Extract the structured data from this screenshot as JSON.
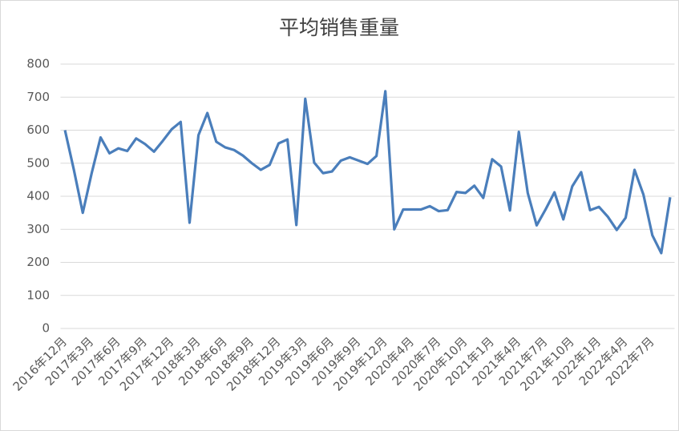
{
  "chart_data": {
    "type": "line",
    "title": "平均销售重量",
    "categories": [
      "2016年12月",
      null,
      null,
      "2017年3月",
      null,
      null,
      "2017年6月",
      null,
      null,
      "2017年9月",
      null,
      null,
      "2017年12月",
      null,
      null,
      "2018年3月",
      null,
      null,
      "2018年6月",
      null,
      null,
      "2018年9月",
      null,
      null,
      "2018年12月",
      null,
      null,
      "2019年3月",
      null,
      null,
      "2019年6月",
      null,
      null,
      "2019年9月",
      null,
      null,
      "2019年12月",
      null,
      null,
      "2020年4月",
      null,
      null,
      "2020年7月",
      null,
      null,
      "2020年10月",
      null,
      null,
      "2021年1月",
      null,
      null,
      "2021年4月",
      null,
      null,
      "2021年7月",
      null,
      null,
      "2021年10月",
      null,
      null,
      "2022年1月",
      null,
      null,
      "2022年4月",
      null,
      null,
      "2022年7月",
      null,
      null
    ],
    "values": [
      600,
      480,
      350,
      470,
      578,
      530,
      545,
      537,
      575,
      558,
      535,
      568,
      603,
      625,
      320,
      585,
      652,
      565,
      548,
      540,
      523,
      500,
      480,
      495,
      560,
      572,
      313,
      695,
      502,
      470,
      475,
      508,
      518,
      508,
      498,
      522,
      718,
      300,
      360,
      360,
      360,
      370,
      355,
      358,
      413,
      410,
      432,
      395,
      512,
      490,
      357,
      595,
      410,
      312,
      360,
      412,
      330,
      430,
      473,
      358,
      368,
      338,
      298,
      335,
      480,
      405,
      282,
      228,
      397
    ],
    "color": "#4a7ebb",
    "ylim": [
      0,
      800
    ],
    "yticks": [
      0,
      100,
      200,
      300,
      400,
      500,
      600,
      700,
      800
    ],
    "grid": true
  }
}
